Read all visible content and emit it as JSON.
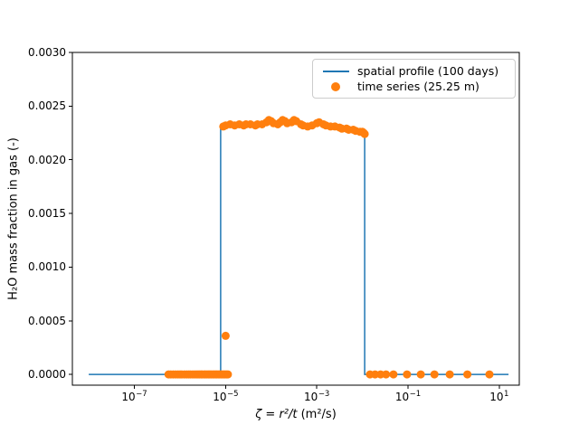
{
  "chart_data": {
    "type": "line+scatter",
    "x_scale": "log",
    "xlabel_math": "ζ = r²/t",
    "xlabel_unit": " (m²/s)",
    "ylabel": "H₂O mass fraction in gas (-)",
    "xlim_log10": [
      -8.36,
      1.44
    ],
    "ylim": [
      -0.0001,
      0.003
    ],
    "x_ticks_exponents": [
      -7,
      -5,
      -3,
      -1,
      1
    ],
    "y_ticks": [
      {
        "value": 0.0,
        "label": "0.0000"
      },
      {
        "value": 0.0005,
        "label": "0.0005"
      },
      {
        "value": 0.001,
        "label": "0.0010"
      },
      {
        "value": 0.0015,
        "label": "0.0015"
      },
      {
        "value": 0.002,
        "label": "0.0020"
      },
      {
        "value": 0.0025,
        "label": "0.0025"
      },
      {
        "value": 0.003,
        "label": "0.0030"
      }
    ],
    "legend": {
      "position": "upper right",
      "frame": true
    },
    "series": [
      {
        "name": "spatial profile (100 days)",
        "type": "line",
        "color": "#1f77b4",
        "linewidth": 1.5,
        "points": [
          [
            1e-08,
            0
          ],
          [
            7.8e-06,
            0
          ],
          [
            7.8e-06,
            0.00231
          ],
          [
            1e-05,
            0.00232
          ],
          [
            3.2e-05,
            0.00233
          ],
          [
            0.0001,
            0.00235
          ],
          [
            0.00018,
            0.00236
          ],
          [
            0.00032,
            0.00236
          ],
          [
            0.00056,
            0.00232
          ],
          [
            0.001,
            0.00234
          ],
          [
            0.0018,
            0.00232
          ],
          [
            0.0032,
            0.0023
          ],
          [
            0.0056,
            0.00228
          ],
          [
            0.01,
            0.00226
          ],
          [
            0.0112,
            0.00225
          ],
          [
            0.0112,
            0
          ],
          [
            16,
            0
          ]
        ]
      },
      {
        "name": "time series (25.25 m)",
        "type": "scatter",
        "color": "#ff7f0e",
        "markersize": 9,
        "points": [
          [
            6.1,
            0
          ],
          [
            2.0,
            0
          ],
          [
            0.82,
            0
          ],
          [
            0.38,
            0
          ],
          [
            0.19,
            0
          ],
          [
            0.095,
            0
          ],
          [
            0.048,
            0
          ],
          [
            0.033,
            0
          ],
          [
            0.025,
            0
          ],
          [
            0.019,
            0
          ],
          [
            0.0147,
            0
          ],
          [
            0.0112,
            0.00224
          ],
          [
            0.0107,
            0.00225
          ],
          [
            0.01,
            0.00226
          ],
          [
            0.0089,
            0.00226
          ],
          [
            0.0071,
            0.00227
          ],
          [
            0.0063,
            0.00228
          ],
          [
            0.005,
            0.00228
          ],
          [
            0.0045,
            0.00229
          ],
          [
            0.00355,
            0.00229
          ],
          [
            0.00316,
            0.0023
          ],
          [
            0.0025,
            0.00231
          ],
          [
            0.002,
            0.00231
          ],
          [
            0.00158,
            0.00232
          ],
          [
            0.0014,
            0.00233
          ],
          [
            0.00112,
            0.00235
          ],
          [
            0.001,
            0.00234
          ],
          [
            0.00079,
            0.00232
          ],
          [
            0.00063,
            0.00231
          ],
          [
            0.0005,
            0.00232
          ],
          [
            0.00045,
            0.00233
          ],
          [
            0.000355,
            0.00236
          ],
          [
            0.000316,
            0.00237
          ],
          [
            0.00028,
            0.00235
          ],
          [
            0.000224,
            0.00234
          ],
          [
            0.0002,
            0.00236
          ],
          [
            0.000178,
            0.00237
          ],
          [
            0.000158,
            0.00235
          ],
          [
            0.00014,
            0.00233
          ],
          [
            0.000112,
            0.00234
          ],
          [
            0.0001,
            0.00236
          ],
          [
            8.9e-05,
            0.00237
          ],
          [
            7.9e-05,
            0.00235
          ],
          [
            6.3e-05,
            0.00233
          ],
          [
            5e-05,
            0.00233
          ],
          [
            4.5e-05,
            0.00232
          ],
          [
            3.5e-05,
            0.00233
          ],
          [
            2.8e-05,
            0.00233
          ],
          [
            2.5e-05,
            0.00232
          ],
          [
            2e-05,
            0.00233
          ],
          [
            1.58e-05,
            0.00232
          ],
          [
            1.26e-05,
            0.00233
          ],
          [
            1e-05,
            0.00232
          ],
          [
            8.9e-06,
            0.00231
          ],
          [
            1e-05,
            0.00036
          ],
          [
            1.12e-05,
            0
          ],
          [
            1.05e-05,
            0
          ],
          [
            9.8e-06,
            0
          ],
          [
            9.1e-06,
            0
          ],
          [
            8.5e-06,
            0
          ],
          [
            7.9e-06,
            0
          ],
          [
            7.4e-06,
            0
          ],
          [
            6.9e-06,
            0
          ],
          [
            6.4e-06,
            0
          ],
          [
            6e-06,
            0
          ],
          [
            5.6e-06,
            0
          ],
          [
            5.2e-06,
            0
          ],
          [
            4.8e-06,
            0
          ],
          [
            4.5e-06,
            0
          ],
          [
            4.2e-06,
            0
          ],
          [
            3.9e-06,
            0
          ],
          [
            3.6e-06,
            0
          ],
          [
            3.4e-06,
            0
          ],
          [
            3.1e-06,
            0
          ],
          [
            2.9e-06,
            0
          ],
          [
            2.7e-06,
            0
          ],
          [
            2.5e-06,
            0
          ],
          [
            2.3e-06,
            0
          ],
          [
            2.1e-06,
            0
          ],
          [
            1.9e-06,
            0
          ],
          [
            1.7e-06,
            0
          ],
          [
            1.55e-06,
            0
          ],
          [
            1.4e-06,
            0
          ],
          [
            1.25e-06,
            0
          ],
          [
            1.1e-06,
            0
          ],
          [
            1e-06,
            0
          ],
          [
            9e-07,
            0
          ],
          [
            8e-07,
            0
          ],
          [
            7.1e-07,
            0
          ],
          [
            6.3e-07,
            0
          ],
          [
            5.6e-07,
            0
          ]
        ]
      }
    ]
  }
}
